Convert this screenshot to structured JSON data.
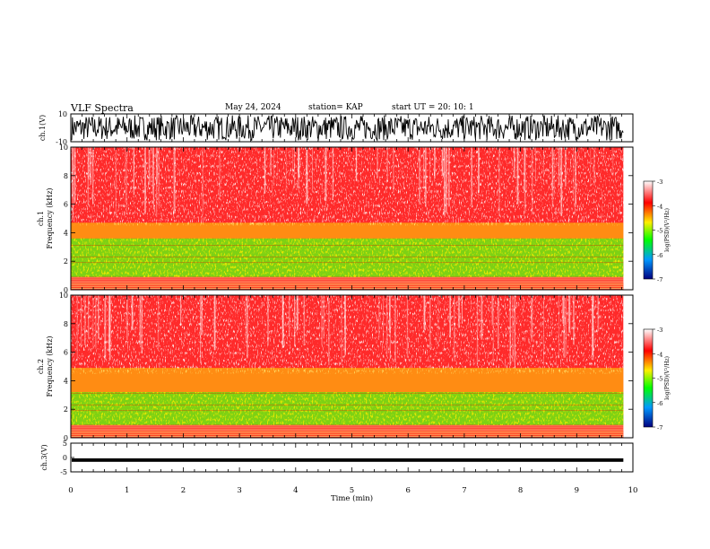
{
  "header": {
    "title": "VLF Spectra",
    "date": "May 24, 2024",
    "station": "station= KAP",
    "start": "start  UT  =   20: 10: 1"
  },
  "colors": {
    "spectrogram_background": "#ff2a2a",
    "speckle": "#ffffff",
    "band_green": "#66ee11",
    "band_yellow": "#ffdd00",
    "waveform": "#000000"
  },
  "chart_data": [
    {
      "type": "line",
      "panel": "ch1-waveform",
      "ylabel": "ch.1(V)",
      "ylim": [
        -10,
        10
      ],
      "yticks": [
        "10",
        "-10"
      ],
      "xlim": [
        0,
        10
      ],
      "description_values": {
        "amplitude_range_v": [
          -9,
          9
        ]
      }
    },
    {
      "type": "heatmap",
      "panel": "ch1-spectrogram",
      "ylabel": "ch.1\nFrequency (kHz)",
      "ylim": [
        0,
        10
      ],
      "yticks": [
        "0",
        "2",
        "4",
        "6",
        "8",
        "10"
      ],
      "xlim": [
        0,
        9.83
      ],
      "bands_khz": [
        {
          "from": 0.0,
          "to": 0.5,
          "level": "mixed"
        },
        {
          "from": 0.9,
          "to": 3.6,
          "level": "green"
        },
        {
          "from": 3.6,
          "to": 4.7,
          "level": "yellow"
        }
      ],
      "colorbar": {
        "label": "log(PSD)(V²/Hz)",
        "ticks": [
          "-3",
          "-4",
          "-5",
          "-6",
          "-7"
        ],
        "range": [
          -7,
          -3
        ]
      }
    },
    {
      "type": "heatmap",
      "panel": "ch2-spectrogram",
      "ylabel": "ch.2\nFrequency (kHz)",
      "ylim": [
        0,
        10
      ],
      "yticks": [
        "0",
        "2",
        "4",
        "6",
        "8",
        "10"
      ],
      "xlim": [
        0,
        9.83
      ],
      "bands_khz": [
        {
          "from": 0.0,
          "to": 0.5,
          "level": "mixed"
        },
        {
          "from": 0.9,
          "to": 3.2,
          "level": "green"
        },
        {
          "from": 3.2,
          "to": 4.9,
          "level": "yellow"
        }
      ],
      "colorbar": {
        "label": "log(PSD)(V²/Hz)",
        "ticks": [
          "-3",
          "-4",
          "-5",
          "-6",
          "-7"
        ],
        "range": [
          -7,
          -3
        ]
      }
    },
    {
      "type": "line",
      "panel": "ch3-waveform",
      "ylabel": "ch.3(V)",
      "ylim": [
        -5,
        5
      ],
      "yticks": [
        "5",
        "0",
        "-5"
      ],
      "xlim": [
        0,
        10
      ],
      "xlabel": "Time (min)",
      "xticks": [
        "0",
        "1",
        "2",
        "3",
        "4",
        "5",
        "6",
        "7",
        "8",
        "9",
        "10"
      ],
      "description_values": {
        "amplitude_range_v": [
          -1.5,
          -0.3
        ]
      }
    }
  ]
}
